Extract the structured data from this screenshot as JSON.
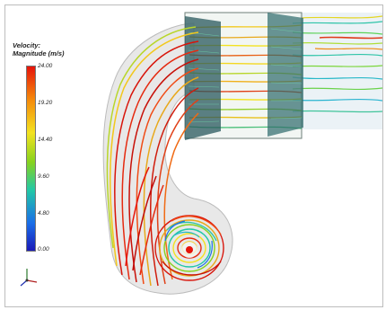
{
  "legend": {
    "title_line1": "Velocity:",
    "title_line2": "Magnitude (m/s)",
    "ticks": [
      "24.00",
      "19.20",
      "14.40",
      "9.60",
      "4.80",
      "0.00"
    ]
  },
  "colors": {
    "max": "#e6140a",
    "high": "#f58a0a",
    "mid_high": "#f3e220",
    "mid": "#86d21e",
    "mid_low": "#22c8a6",
    "low": "#1a6ee8",
    "min": "#1a1ab8"
  },
  "icons": {
    "axis": "coordinate-triad-icon"
  }
}
